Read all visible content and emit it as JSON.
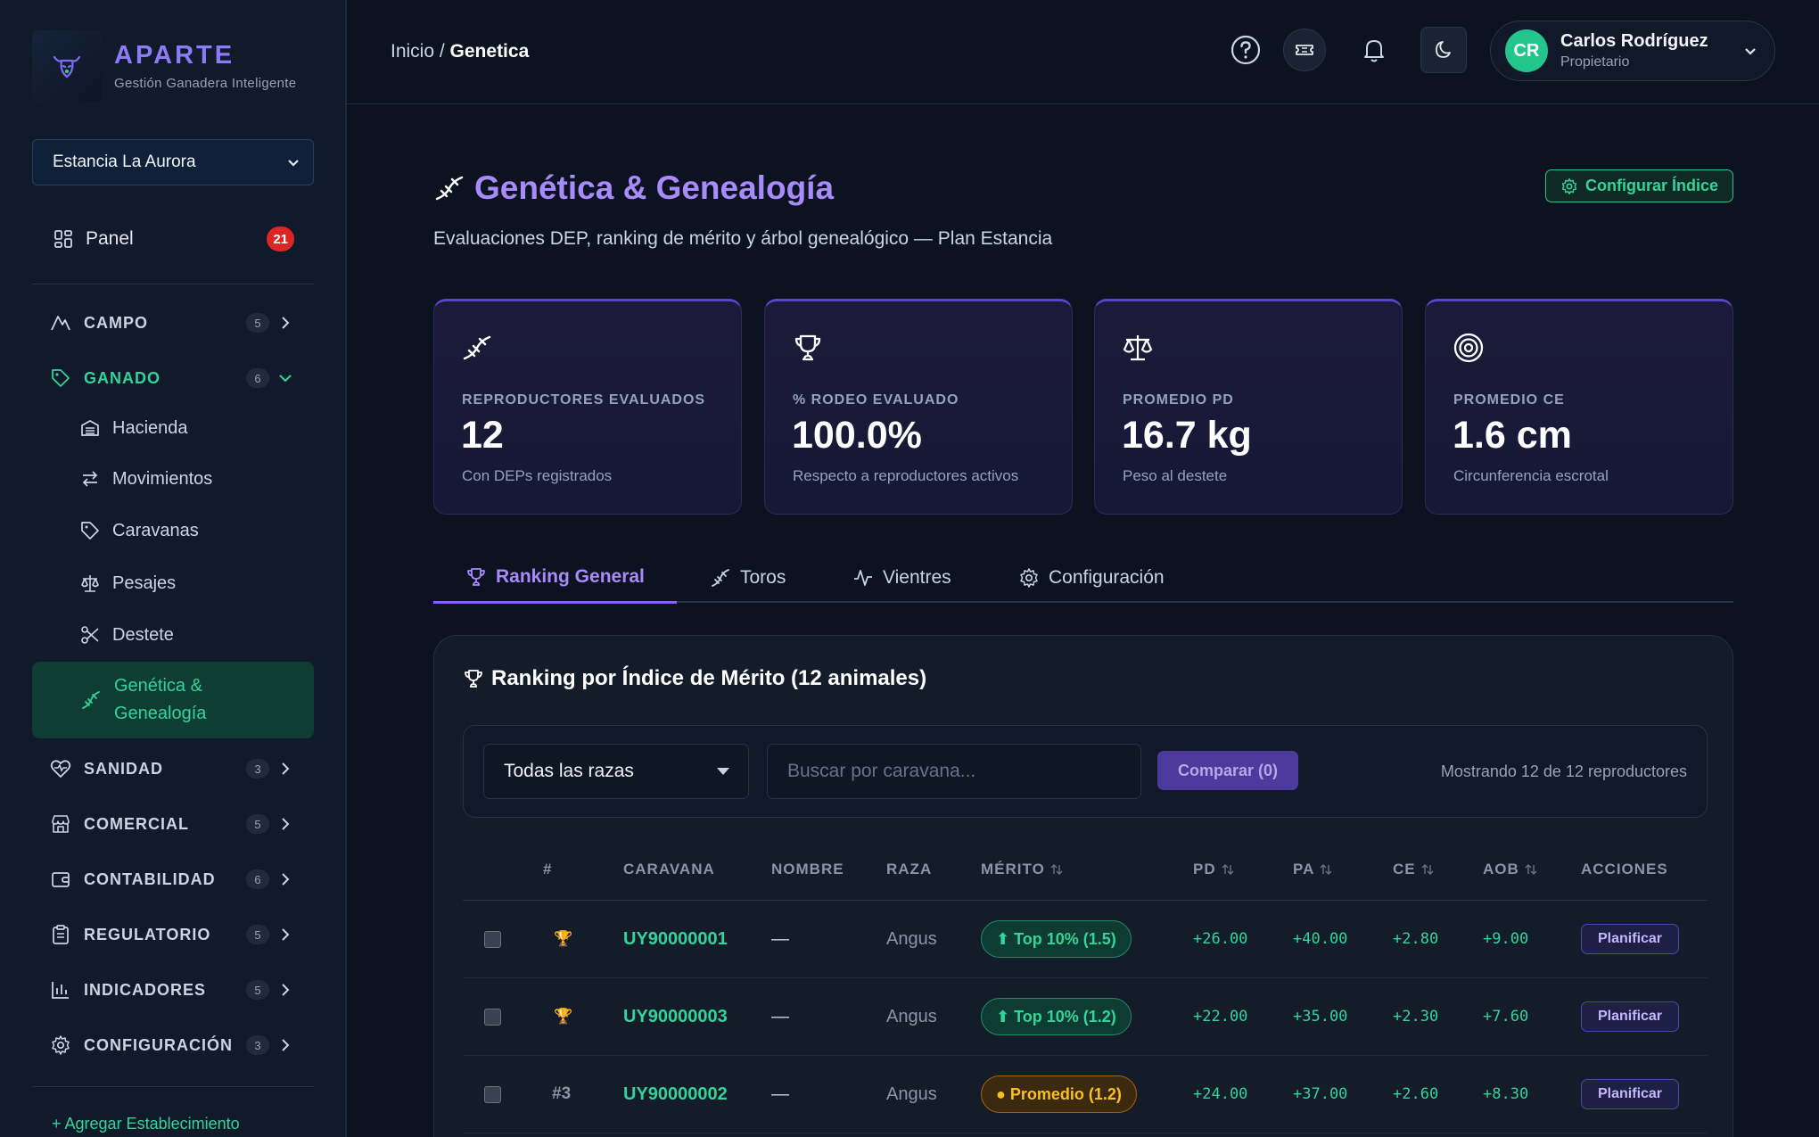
{
  "brand": {
    "name": "APARTE",
    "subtitle": "Gestión Ganadera Inteligente"
  },
  "sidebar": {
    "estancia": "Estancia La Aurora",
    "panel": {
      "label": "Panel",
      "badge": "21"
    },
    "groups": [
      {
        "label": "CAMPO",
        "count": "5"
      },
      {
        "label": "GANADO",
        "count": "6"
      },
      {
        "label": "SANIDAD",
        "count": "3"
      },
      {
        "label": "COMERCIAL",
        "count": "5"
      },
      {
        "label": "CONTABILIDAD",
        "count": "6"
      },
      {
        "label": "REGULATORIO",
        "count": "5"
      },
      {
        "label": "INDICADORES",
        "count": "5"
      },
      {
        "label": "CONFIGURACIÓN",
        "count": "3"
      }
    ],
    "ganado_items": [
      "Hacienda",
      "Movimientos",
      "Caravanas",
      "Pesajes",
      "Destete",
      "Genética & Genealogía"
    ],
    "add_label": "+ Agregar Establecimiento"
  },
  "header": {
    "breadcrumb_root": "Inicio",
    "breadcrumb_sep": " / ",
    "breadcrumb_current": "Genetica",
    "user": {
      "initials": "CR",
      "name": "Carlos Rodríguez",
      "role": "Propietario"
    }
  },
  "page": {
    "title": "Genética & Genealogía",
    "subtitle": "Evaluaciones DEP, ranking de mérito y árbol genealógico — Plan Estancia",
    "config_button": "Configurar Índice"
  },
  "kpis": [
    {
      "label": "REPRODUCTORES EVALUADOS",
      "value": "12",
      "note": "Con DEPs registrados",
      "icon": "dna-icon"
    },
    {
      "label": "% RODEO EVALUADO",
      "value": "100.0%",
      "note": "Respecto a reproductores activos",
      "icon": "trophy-icon"
    },
    {
      "label": "PROMEDIO PD",
      "value": "16.7 kg",
      "note": "Peso al destete",
      "icon": "scale-icon"
    },
    {
      "label": "PROMEDIO CE",
      "value": "1.6 cm",
      "note": "Circunferencia escrotal",
      "icon": "target-icon"
    }
  ],
  "tabs": [
    "Ranking General",
    "Toros",
    "Vientres",
    "Configuración"
  ],
  "ranking": {
    "title": "Ranking por Índice de Mérito (12 animales)",
    "raza_filter": "Todas las razas",
    "search_placeholder": "Buscar por caravana...",
    "compare_label": "Comparar (0)",
    "showing": "Mostrando 12 de 12 reproductores",
    "columns": [
      "#",
      "CARAVANA",
      "NOMBRE",
      "RAZA",
      "MÉRITO",
      "PD",
      "PA",
      "CE",
      "AOB",
      "ACCIONES"
    ],
    "rows": [
      {
        "rank": "🏆",
        "caravana": "UY90000001",
        "nombre": "—",
        "raza": "Angus",
        "merito": "⬆ Top 10% (1.5)",
        "merito_type": "top",
        "pd": "+26.00",
        "pa": "+40.00",
        "ce": "+2.80",
        "aob": "+9.00",
        "accion": "Planificar"
      },
      {
        "rank": "🏆",
        "caravana": "UY90000003",
        "nombre": "—",
        "raza": "Angus",
        "merito": "⬆ Top 10% (1.2)",
        "merito_type": "top",
        "pd": "+22.00",
        "pa": "+35.00",
        "ce": "+2.30",
        "aob": "+7.60",
        "accion": "Planificar"
      },
      {
        "rank": "#3",
        "caravana": "UY90000002",
        "nombre": "—",
        "raza": "Angus",
        "merito": "● Promedio (1.2)",
        "merito_type": "prom",
        "pd": "+24.00",
        "pa": "+37.00",
        "ce": "+2.60",
        "aob": "+8.30",
        "accion": "Planificar"
      }
    ]
  }
}
